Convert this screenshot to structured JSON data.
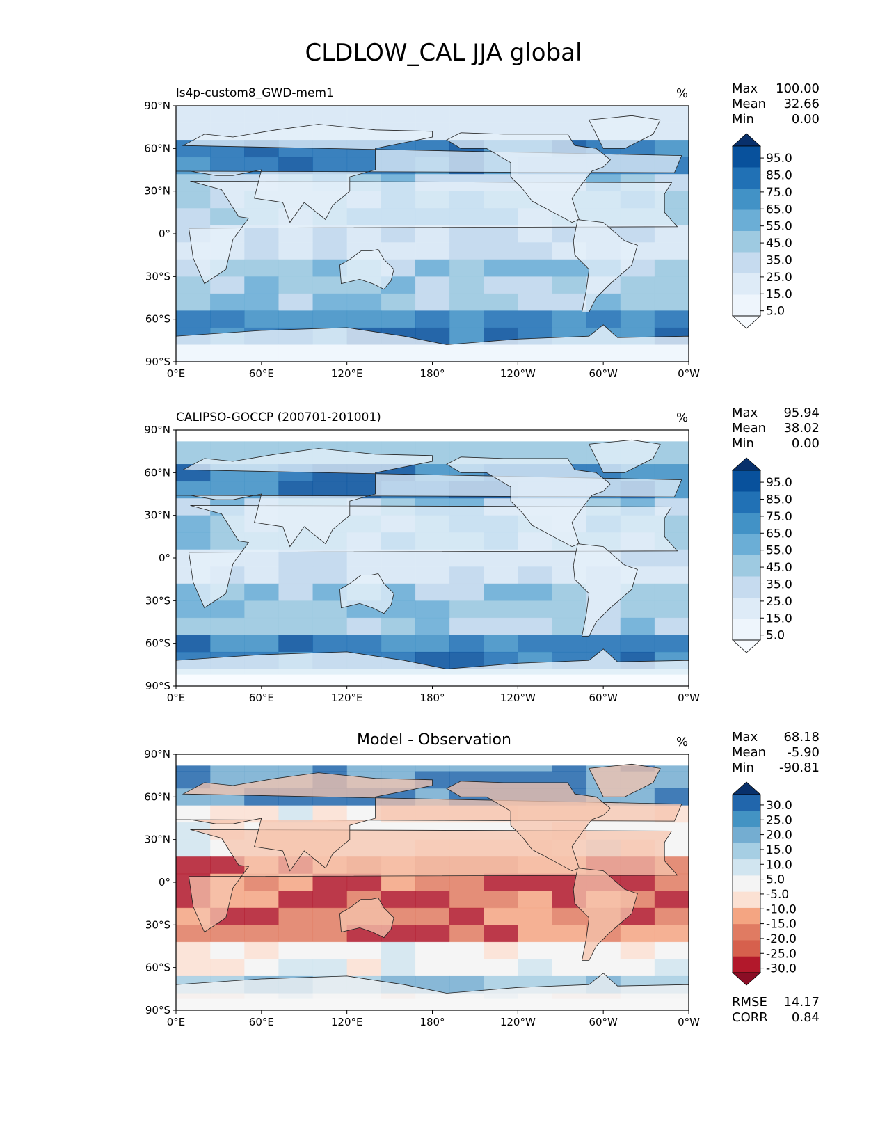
{
  "figure_title": "CLDLOW_CAL JJA global",
  "chart_data": [
    {
      "type": "heatmap",
      "panel": "model",
      "title": "ls4p-custom8_GWD-mem1",
      "units": "%",
      "x_ticks": [
        "0°E",
        "60°E",
        "120°E",
        "180°",
        "120°W",
        "60°W",
        "0°W"
      ],
      "y_ticks": [
        "90°N",
        "60°N",
        "30°N",
        "0°",
        "30°S",
        "60°S",
        "90°S"
      ],
      "xlim": [
        0,
        360
      ],
      "ylim": [
        -90,
        90
      ],
      "stats": [
        {
          "label": "Max",
          "value": "100.00"
        },
        {
          "label": "Mean",
          "value": "32.66"
        },
        {
          "label": "Min",
          "value": "0.00"
        }
      ],
      "colorbar_ticks": [
        "95.0",
        "85.0",
        "75.0",
        "65.0",
        "55.0",
        "45.0",
        "35.0",
        "25.0",
        "15.0",
        "5.0"
      ],
      "colorbar_colors": [
        "#08306b",
        "#08519c",
        "#2171b5",
        "#4292c6",
        "#6baed6",
        "#9ecae1",
        "#c6dbef",
        "#deebf7",
        "#eef5fc",
        "#f7fbff"
      ],
      "colorbar_extend": "both"
    },
    {
      "type": "heatmap",
      "panel": "observation",
      "title": "CALIPSO-GOCCP (200701-201001)",
      "units": "%",
      "x_ticks": [
        "0°E",
        "60°E",
        "120°E",
        "180°",
        "120°W",
        "60°W",
        "0°W"
      ],
      "y_ticks": [
        "90°N",
        "60°N",
        "30°N",
        "0°",
        "30°S",
        "60°S",
        "90°S"
      ],
      "xlim": [
        0,
        360
      ],
      "ylim": [
        -90,
        90
      ],
      "stats": [
        {
          "label": "Max",
          "value": "95.94"
        },
        {
          "label": "Mean",
          "value": "38.02"
        },
        {
          "label": "Min",
          "value": "0.00"
        }
      ],
      "colorbar_ticks": [
        "95.0",
        "85.0",
        "75.0",
        "65.0",
        "55.0",
        "45.0",
        "35.0",
        "25.0",
        "15.0",
        "5.0"
      ],
      "colorbar_colors": [
        "#08306b",
        "#08519c",
        "#2171b5",
        "#4292c6",
        "#6baed6",
        "#9ecae1",
        "#c6dbef",
        "#deebf7",
        "#eef5fc",
        "#f7fbff"
      ],
      "colorbar_extend": "both"
    },
    {
      "type": "heatmap",
      "panel": "difference",
      "title": "Model - Observation",
      "units": "%",
      "x_ticks": [
        "0°E",
        "60°E",
        "120°E",
        "180°",
        "120°W",
        "60°W",
        "0°W"
      ],
      "y_ticks": [
        "90°N",
        "60°N",
        "30°N",
        "0°",
        "30°S",
        "60°S",
        "90°S"
      ],
      "xlim": [
        0,
        360
      ],
      "ylim": [
        -90,
        90
      ],
      "stats": [
        {
          "label": "Max",
          "value": "68.18"
        },
        {
          "label": "Mean",
          "value": "-5.90"
        },
        {
          "label": "Min",
          "value": "-90.81"
        }
      ],
      "extra_stats": [
        {
          "label": "RMSE",
          "value": "14.17"
        },
        {
          "label": "CORR",
          "value": "0.84"
        }
      ],
      "colorbar_ticks": [
        "30.0",
        "25.0",
        "20.0",
        "15.0",
        "10.0",
        "5.0",
        "-5.0",
        "-10.0",
        "-15.0",
        "-20.0",
        "-25.0",
        "-30.0"
      ],
      "colorbar_colors": [
        "#08306b",
        "#2166ac",
        "#4393c3",
        "#74add1",
        "#a6cee3",
        "#d1e5f0",
        "#f4f4f4",
        "#fbe1d3",
        "#f4a582",
        "#e07b62",
        "#d6604d",
        "#b2182b",
        "#8b0d25"
      ],
      "colorbar_extend": "both"
    }
  ]
}
